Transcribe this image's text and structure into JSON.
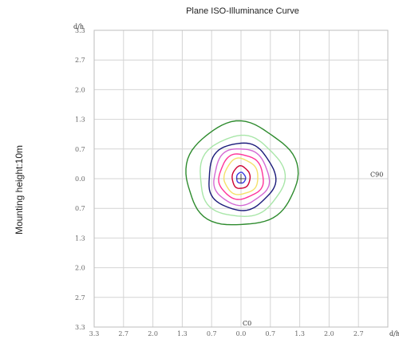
{
  "chart_data": {
    "type": "contour",
    "title": "Plane ISO-Illuminance Curve",
    "side_label": "Mounting height:10m",
    "x_axis_unit": "d/h",
    "y_axis_unit": "d/h",
    "x_ticks": [
      "3.3",
      "2.7",
      "2.0",
      "1.3",
      "0.7",
      "0.0",
      "0.7",
      "1.3",
      "2.0",
      "2.7"
    ],
    "y_ticks": [
      "3.3",
      "2.7",
      "2.0",
      "1.3",
      "0.7",
      "0.0",
      "0.7",
      "1.3",
      "2.0",
      "2.7",
      "3.3"
    ],
    "xlim": [
      -3.3,
      3.3
    ],
    "ylim": [
      -3.3,
      3.3
    ],
    "plane_labels": {
      "c90": "C90",
      "c0": "C0"
    },
    "grid": true,
    "contours": [
      {
        "color": "#2e8b2e",
        "rx": 1.25,
        "ry_top": 1.25,
        "ry_bottom": 1.05
      },
      {
        "color": "#a8e6a8",
        "rx": 0.95,
        "ry_top": 0.95,
        "ry_bottom": 0.85
      },
      {
        "color": "#1a1a7a",
        "rx": 0.75,
        "ry_top": 0.8,
        "ry_bottom": 0.7
      },
      {
        "color": "#d46ad4",
        "rx": 0.62,
        "ry_top": 0.68,
        "ry_bottom": 0.58
      },
      {
        "color": "#ff3399",
        "rx": 0.5,
        "ry_top": 0.55,
        "ry_bottom": 0.45
      },
      {
        "color": "#f5e06a",
        "rx": 0.38,
        "ry_top": 0.45,
        "ry_bottom": 0.35
      },
      {
        "color": "#cc0033",
        "rx": 0.2,
        "ry_top": 0.28,
        "ry_bottom": 0.22
      },
      {
        "color": "#3a3ae0",
        "rx": 0.1,
        "ry_top": 0.14,
        "ry_bottom": 0.1
      }
    ]
  }
}
